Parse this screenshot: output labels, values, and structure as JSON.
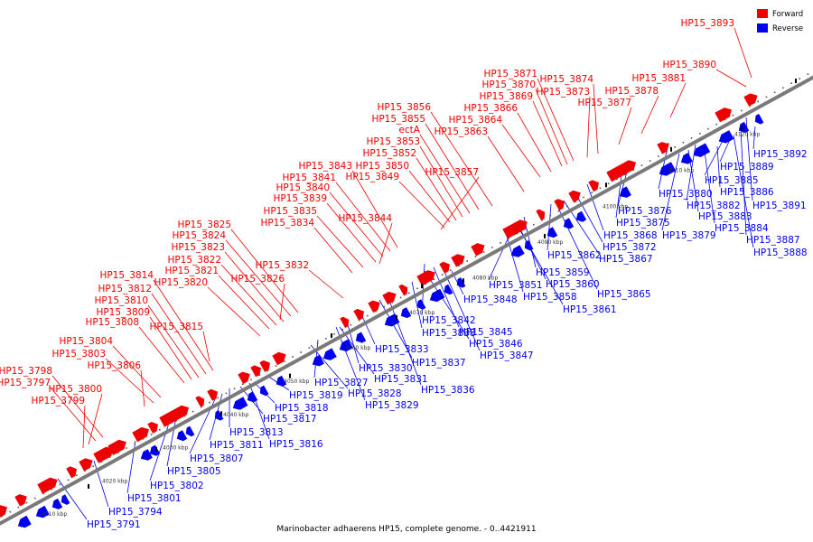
{
  "caption": "Marinobacter adhaerens HP15, complete genome. - 0..4421911",
  "legend": [
    {
      "label": "Forward",
      "color": "#ee0000"
    },
    {
      "label": "Reverse",
      "color": "#0000ee"
    }
  ],
  "colors": {
    "forward": "#ee0000",
    "reverse": "#0000ee",
    "backbone": "#808080",
    "leader_fwd": "#ee0000",
    "leader_rev": "#0000ee"
  },
  "ticks": [
    "4010 kbp",
    "4020 kbp",
    "4030 kbp",
    "4040 kbp",
    "4050 kbp",
    "4060 kbp",
    "4070 kbp",
    "4080 kbp",
    "4090 kbp",
    "4100 kbp",
    "4110 kbp",
    "4120 kbp"
  ],
  "forward_labels": [
    "HP15_3893",
    "HP15_3890",
    "HP15_3881",
    "HP15_3878",
    "HP15_3877",
    "HP15_3874",
    "HP15_3873",
    "HP15_3871",
    "HP15_3870",
    "HP15_3869",
    "HP15_3866",
    "HP15_3864",
    "HP15_3863",
    "HP15_3856",
    "HP15_3855",
    "ectA",
    "HP15_3853",
    "HP15_3852",
    "HP15_3850",
    "HP15_3849",
    "HP15_3857",
    "HP15_3843",
    "HP15_3841",
    "HP15_3840",
    "HP15_3839",
    "HP15_3835",
    "HP15_3834",
    "HP15_3844",
    "HP15_3825",
    "HP15_3824",
    "HP15_3823",
    "HP15_3822",
    "HP15_3821",
    "HP15_3820",
    "HP15_3832",
    "HP15_3826",
    "HP15_3814",
    "HP15_3812",
    "HP15_3810",
    "HP15_3809",
    "HP15_3808",
    "HP15_3815",
    "HP15_3804",
    "HP15_3803",
    "HP15_3806",
    "HP15_3798",
    "HP15_3797",
    "HP15_3800",
    "HP15_3799"
  ],
  "reverse_labels": [
    "HP15_3892",
    "HP15_3889",
    "HP15_3885",
    "HP15_3886",
    "HP15_3891",
    "HP15_3880",
    "HP15_3882",
    "HP15_3883",
    "HP15_3884",
    "HP15_3887",
    "HP15_3888",
    "HP15_3879",
    "HP15_3876",
    "HP15_3875",
    "HP15_3868",
    "HP15_3872",
    "HP15_3867",
    "HP15_3862",
    "HP15_3859",
    "HP15_3860",
    "HP15_3865",
    "HP15_3851",
    "HP15_3858",
    "HP15_3861",
    "HP15_3848",
    "HP15_3842",
    "HP15_3838",
    "HP15_3845",
    "HP15_3846",
    "HP15_3847",
    "HP15_3837",
    "HP15_3833",
    "HP15_3830",
    "HP15_3831",
    "HP15_3836",
    "HP15_3827",
    "HP15_3828",
    "HP15_3829",
    "HP15_3819",
    "HP15_3818",
    "HP15_3817",
    "HP15_3813",
    "HP15_3816",
    "HP15_3811",
    "HP15_3807",
    "HP15_3805",
    "HP15_3802",
    "HP15_3801",
    "HP15_3794",
    "HP15_3791"
  ]
}
